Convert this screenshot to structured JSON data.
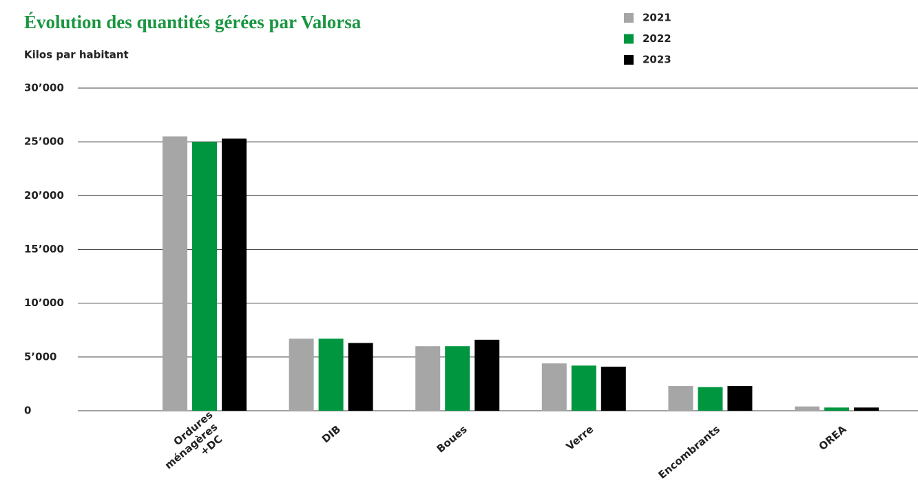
{
  "chart_data": {
    "type": "bar",
    "title": "Évolution des quantités gérées par Valorsa",
    "subtitle": "Kilos par habitant",
    "categories": [
      "Ordures ménagères +DC",
      "DIB",
      "Boues",
      "Verre",
      "Encombrants",
      "OREA"
    ],
    "series": [
      {
        "name": "2021",
        "color": "#a6a6a6",
        "values": [
          25500,
          6700,
          6000,
          4400,
          2300,
          400
        ]
      },
      {
        "name": "2022",
        "color": "#009640",
        "values": [
          25000,
          6700,
          6000,
          4200,
          2200,
          300
        ]
      },
      {
        "name": "2023",
        "color": "#000000",
        "values": [
          25300,
          6300,
          6600,
          4100,
          2300,
          300
        ]
      }
    ],
    "ylim": [
      0,
      30000
    ],
    "yticks": [
      0,
      {
        "value": 5000,
        "label": "5’000"
      },
      {
        "value": 10000,
        "label": "10’000"
      },
      {
        "value": 15000,
        "label": "15’000"
      },
      {
        "value": 20000,
        "label": "20’000"
      },
      {
        "value": 25000,
        "label": "25’000"
      },
      {
        "value": 30000,
        "label": "30’000"
      }
    ],
    "grid": true,
    "legend": "top-right"
  }
}
